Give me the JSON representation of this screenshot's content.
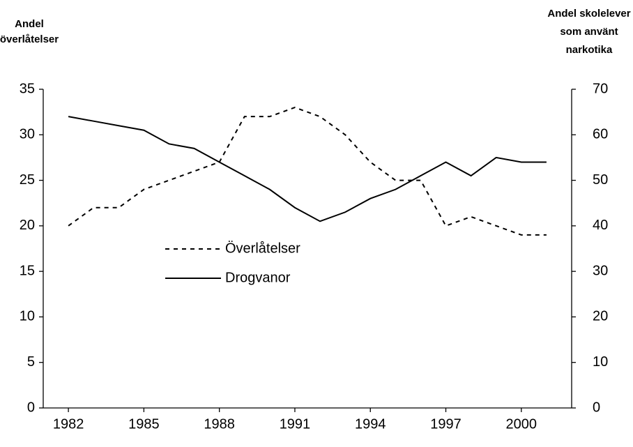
{
  "chart_data": {
    "type": "line",
    "y_label_lines": [
      "Andel",
      "överlåtelser"
    ],
    "y2_label_lines": [
      "Andel skolelever",
      "som använt",
      "narkotika"
    ],
    "x": [
      1982,
      1983,
      1984,
      1985,
      1986,
      1987,
      1988,
      1989,
      1990,
      1991,
      1992,
      1993,
      1994,
      1995,
      1996,
      1997,
      1998,
      1999,
      2000,
      2001
    ],
    "xlim": [
      1981,
      2002
    ],
    "xticks": [
      1982,
      1985,
      1988,
      1991,
      1994,
      1997,
      2000
    ],
    "ylim": [
      0,
      35
    ],
    "yticks": [
      0,
      5,
      10,
      15,
      20,
      25,
      30,
      35
    ],
    "y2lim": [
      0,
      70
    ],
    "y2ticks": [
      0,
      10,
      20,
      30,
      40,
      50,
      60,
      70
    ],
    "grid": false,
    "legend": "center-left",
    "series": [
      {
        "name": "Överlåtelser",
        "color": "#000000",
        "dash": "dashed",
        "axis": "y",
        "values": [
          20,
          22,
          22,
          24,
          25,
          26,
          27,
          32,
          32,
          33,
          32,
          30,
          27,
          25,
          25,
          20,
          21,
          20,
          19,
          19
        ]
      },
      {
        "name": "Drogvanor",
        "color": "#000000",
        "dash": "solid",
        "axis": "y2",
        "values": [
          64,
          63,
          62,
          61,
          58,
          57,
          54,
          51,
          48,
          44,
          41,
          43,
          46,
          48,
          51,
          54,
          51,
          55,
          54,
          54
        ]
      }
    ]
  }
}
